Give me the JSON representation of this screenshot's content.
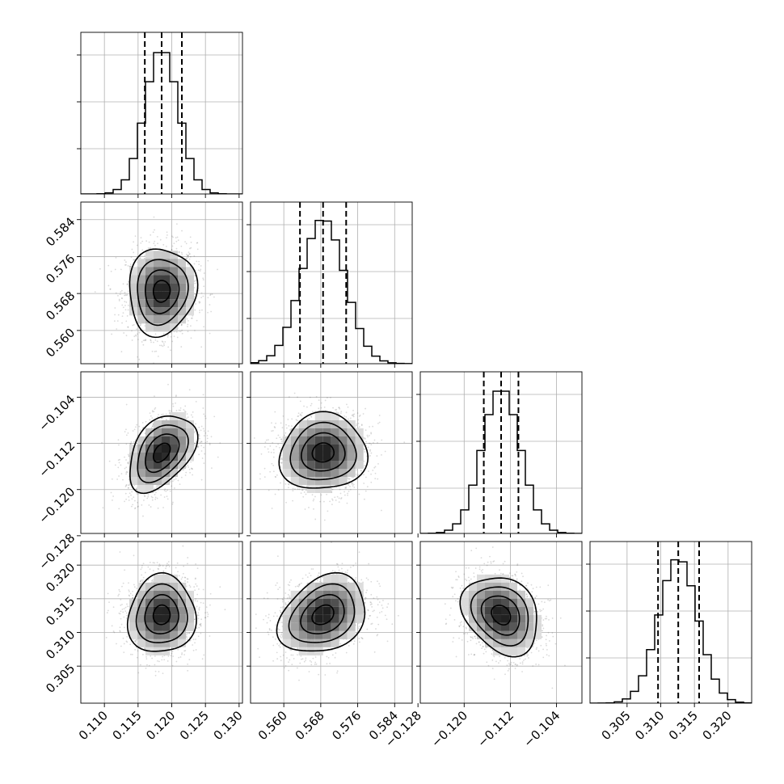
{
  "chart_data": {
    "type": "corner",
    "parameters": [
      {
        "mean": 0.1185,
        "std": 0.0025,
        "q16": 0.116,
        "q50": 0.1185,
        "q84": 0.1215,
        "range": [
          0.1065,
          0.1305
        ],
        "ticks": [
          0.11,
          0.115,
          0.12,
          0.125,
          0.13
        ],
        "tick_labels": [
          "0.110",
          "0.115",
          "0.120",
          "0.125",
          "0.130"
        ]
      },
      {
        "mean": 0.5685,
        "std": 0.0047,
        "q16": 0.5635,
        "q50": 0.5685,
        "q84": 0.5735,
        "range": [
          0.5528,
          0.5878
        ],
        "ticks": [
          0.56,
          0.568,
          0.576,
          0.584
        ],
        "tick_labels": [
          "0.560",
          "0.568",
          "0.576",
          "0.584"
        ]
      },
      {
        "mean": -0.1136,
        "std": 0.0033,
        "q16": -0.1166,
        "q50": -0.1136,
        "q84": -0.1106,
        "range": [
          -0.1276,
          -0.0996
        ],
        "ticks": [
          -0.128,
          -0.12,
          -0.112,
          -0.104
        ],
        "tick_labels": [
          "−0.128",
          "−0.120",
          "−0.112",
          "−0.104"
        ]
      },
      {
        "mean": 0.3126,
        "std": 0.0029,
        "q16": 0.3096,
        "q50": 0.3126,
        "q84": 0.3157,
        "range": [
          0.2995,
          0.3235
        ],
        "ticks": [
          0.305,
          0.31,
          0.315,
          0.32
        ],
        "tick_labels": [
          "0.305",
          "0.310",
          "0.315",
          "0.320"
        ]
      }
    ],
    "correlations": {
      "1-0": 0.05,
      "2-0": 0.42,
      "2-1": 0.05,
      "3-0": 0.05,
      "3-1": 0.28,
      "3-2": -0.25
    },
    "histogram_bins": 20,
    "quantiles": [
      0.16,
      0.5,
      0.84
    ],
    "contour_levels_sigma": [
      0.5,
      1.0,
      1.5,
      2.0
    ],
    "grid": true,
    "title": "",
    "axis_labels": [
      "",
      "",
      "",
      ""
    ]
  }
}
